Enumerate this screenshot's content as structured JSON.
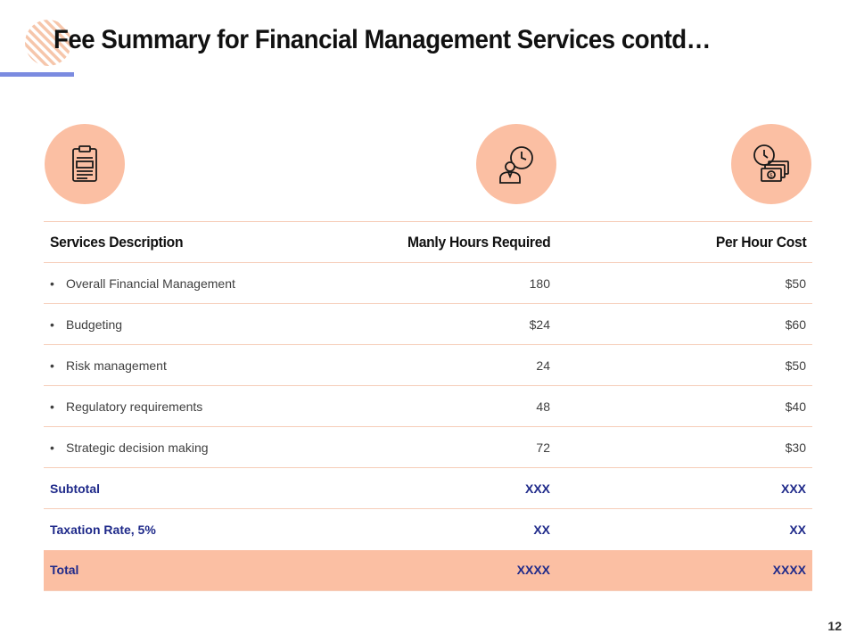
{
  "slide": {
    "title": "Fee Summary for Financial Management Services contd…",
    "page_number": "12"
  },
  "colors": {
    "accent_peach": "#fbbfa3",
    "accent_line": "#7b8be0",
    "summary_text": "#1f2a8a"
  },
  "icons": [
    "clipboard-document-icon",
    "businessman-clock-icon",
    "clock-money-icon"
  ],
  "table": {
    "headers": [
      "Services Description",
      "Manly Hours Required",
      "Per Hour Cost"
    ],
    "rows": [
      {
        "service": "Overall Financial Management",
        "hours": "180",
        "cost": "$50"
      },
      {
        "service": "Budgeting",
        "hours": "$24",
        "cost": "$60"
      },
      {
        "service": "Risk management",
        "hours": "24",
        "cost": "$50"
      },
      {
        "service": "Regulatory requirements",
        "hours": "48",
        "cost": "$40"
      },
      {
        "service": "Strategic decision making",
        "hours": "72",
        "cost": "$30"
      }
    ],
    "subtotal": {
      "label": "Subtotal",
      "hours": "XXX",
      "cost": "XXX"
    },
    "tax": {
      "label": "Taxation Rate, 5%",
      "hours": "XX",
      "cost": "XX"
    },
    "total": {
      "label": "Total",
      "hours": "XXXX",
      "cost": "XXXX"
    }
  }
}
